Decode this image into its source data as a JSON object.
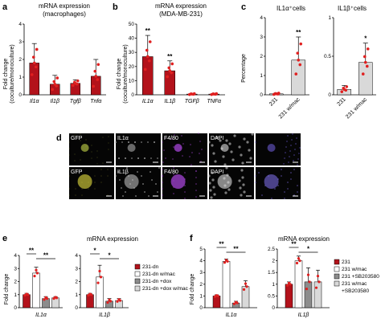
{
  "panels": {
    "a": {
      "letter": "a",
      "title": "mRNA expression",
      "subtitle": "(macrophages)",
      "ylabel": "Fold change",
      "ylabel2": "(coculture/monoculture)"
    },
    "b": {
      "letter": "b",
      "title": "mRNA expression",
      "subtitle": "(MDA-MB-231)",
      "ylabel": "Fold change",
      "ylabel2": "(coculture/monoculture)"
    },
    "c": {
      "letter": "c",
      "title_left": "IL1α⁺cells",
      "title_right": "IL1β⁺cells",
      "ylabel": "Percentage"
    },
    "d": {
      "letter": "d",
      "row1": [
        "GFP",
        "IL1α",
        "F4/80",
        "DAPI",
        ""
      ],
      "row2": [
        "GFP",
        "IL1β",
        "F4/80",
        "DAPI",
        ""
      ]
    },
    "e": {
      "letter": "e",
      "title": "mRNA expression",
      "ylabel": "Fold change",
      "legend": [
        "231-dn",
        "231-dn w/mac",
        "231-dn +dox",
        "231-dn +dox w/mac"
      ]
    },
    "f": {
      "letter": "f",
      "title": "mRNA expression",
      "ylabel": "Fold change",
      "legend": [
        "231",
        "231 w/mac",
        "231 +SB203580",
        "231 w/mac",
        "+SB203580"
      ]
    }
  },
  "chart_data": [
    {
      "panel": "a",
      "type": "bar",
      "categories": [
        "Il1α",
        "Il1β",
        "Tgfβ",
        "Tnfα"
      ],
      "values": [
        1.8,
        0.6,
        0.65,
        1.05
      ],
      "errors": [
        1.1,
        0.5,
        0.2,
        0.95
      ],
      "ylim": [
        0,
        4
      ],
      "yticks": [
        0,
        1,
        2,
        3,
        4
      ],
      "color": "#b3121b"
    },
    {
      "panel": "b",
      "type": "bar",
      "categories": [
        "IL1α",
        "IL1β",
        "TGFβ",
        "TNFα"
      ],
      "values": [
        27,
        17,
        0.5,
        0.5
      ],
      "errors": [
        15,
        7,
        0.5,
        0.5
      ],
      "ylim": [
        0,
        50
      ],
      "yticks": [
        0,
        10,
        20,
        30,
        40,
        50
      ],
      "significance": [
        "**",
        "**",
        "",
        ""
      ],
      "color": "#b3121b"
    },
    {
      "panel": "c-left",
      "type": "bar",
      "categories": [
        "231",
        "231 w/mac"
      ],
      "values": [
        0.05,
        1.8
      ],
      "errors": [
        0.05,
        1.2
      ],
      "ylim": [
        0,
        4
      ],
      "yticks": [
        0,
        1,
        2,
        3,
        4
      ],
      "significance": [
        "",
        "**"
      ]
    },
    {
      "panel": "c-right",
      "type": "bar",
      "categories": [
        "231",
        "231 w/mac"
      ],
      "values": [
        0.07,
        0.42
      ],
      "errors": [
        0.05,
        0.25
      ],
      "ylim": [
        0,
        1
      ],
      "yticks": [
        0,
        0.5,
        1.0
      ],
      "significance": [
        "",
        "*"
      ]
    },
    {
      "panel": "e-left",
      "type": "bar",
      "categories": [
        "IL1α"
      ],
      "series": [
        {
          "name": "231-dn",
          "values": [
            1
          ],
          "errors": [
            0.1
          ]
        },
        {
          "name": "231-dn w/mac",
          "values": [
            2.65
          ],
          "errors": [
            0.45
          ]
        },
        {
          "name": "231-dn +dox",
          "values": [
            0.7
          ],
          "errors": [
            0.15
          ]
        },
        {
          "name": "231-dn +dox w/mac",
          "values": [
            0.75
          ],
          "errors": [
            0.1
          ]
        }
      ],
      "ylim": [
        0,
        4
      ],
      "yticks": [
        0,
        1,
        2,
        3,
        4
      ],
      "brackets": [
        {
          "label": "**",
          "from": 0,
          "to": 1
        },
        {
          "label": "**",
          "from": 1,
          "to": 3
        }
      ]
    },
    {
      "panel": "e-right",
      "type": "bar",
      "categories": [
        "IL1β"
      ],
      "series": [
        {
          "name": "231-dn",
          "values": [
            1
          ],
          "errors": [
            0.1
          ]
        },
        {
          "name": "231-dn w/mac",
          "values": [
            2.35
          ],
          "errors": [
            0.9
          ]
        },
        {
          "name": "231-dn +dox",
          "values": [
            0.5
          ],
          "errors": [
            0.2
          ]
        },
        {
          "name": "231-dn +dox w/mac",
          "values": [
            0.55
          ],
          "errors": [
            0.15
          ]
        }
      ],
      "ylim": [
        0,
        4
      ],
      "yticks": [
        0,
        1,
        2,
        3,
        4
      ],
      "brackets": [
        {
          "label": "*",
          "from": 0,
          "to": 1
        },
        {
          "label": "*",
          "from": 1,
          "to": 3
        }
      ]
    },
    {
      "panel": "f-left",
      "type": "bar",
      "categories": [
        "IL1α"
      ],
      "series": [
        {
          "name": "231",
          "values": [
            1
          ],
          "errors": [
            0.1
          ]
        },
        {
          "name": "231 w/mac",
          "values": [
            3.95
          ],
          "errors": [
            0.2
          ]
        },
        {
          "name": "231 +SB203580",
          "values": [
            0.4
          ],
          "errors": [
            0.15
          ]
        },
        {
          "name": "231 w/mac +SB203580",
          "values": [
            1.8
          ],
          "errors": [
            0.5
          ]
        }
      ],
      "ylim": [
        0,
        5
      ],
      "yticks": [
        0,
        1,
        2,
        3,
        4,
        5
      ],
      "brackets": [
        {
          "label": "**",
          "from": 0,
          "to": 1
        },
        {
          "label": "**",
          "from": 1,
          "to": 3
        }
      ]
    },
    {
      "panel": "f-right",
      "type": "bar",
      "categories": [
        "IL1β"
      ],
      "series": [
        {
          "name": "231",
          "values": [
            1
          ],
          "errors": [
            0.1
          ]
        },
        {
          "name": "231 w/mac",
          "values": [
            2.0
          ],
          "errors": [
            0.2
          ]
        },
        {
          "name": "231 +SB203580",
          "values": [
            1.1
          ],
          "errors": [
            0.6
          ]
        },
        {
          "name": "231 w/mac +SB203580",
          "values": [
            1.1
          ],
          "errors": [
            0.5
          ]
        }
      ],
      "ylim": [
        0,
        2.5
      ],
      "yticks": [
        0,
        0.5,
        1.0,
        1.5,
        2.0,
        2.5
      ],
      "brackets": [
        {
          "label": "**",
          "from": 0,
          "to": 1
        },
        {
          "label": "*",
          "from": 1,
          "to": 3
        }
      ]
    }
  ],
  "colors": {
    "red": "#b3121b",
    "white": "#ffffff",
    "grey": "#8c8c8c",
    "lightgrey": "#d9d9d9",
    "black": "#000000",
    "dot": "#e02020"
  }
}
